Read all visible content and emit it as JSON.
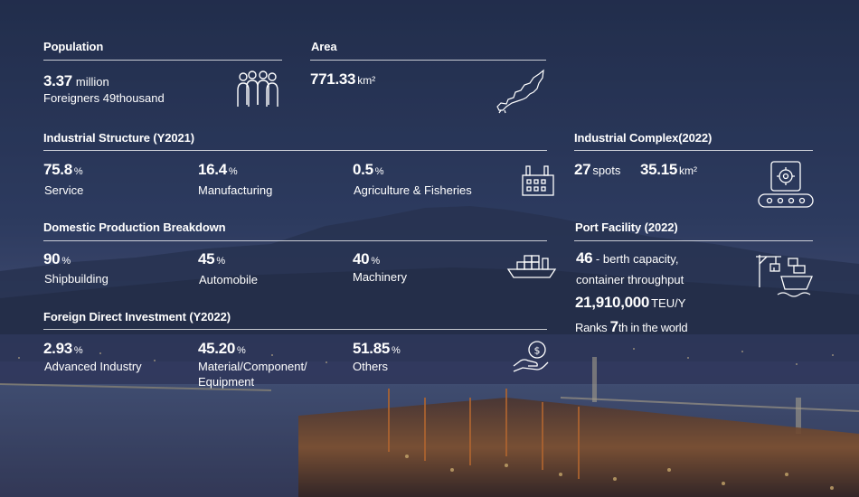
{
  "population": {
    "title": "Population",
    "value": "3.37",
    "unit": "million",
    "foreigners": "Foreigners 49thousand"
  },
  "area": {
    "title": "Area",
    "value": "771.33",
    "unit": "km²"
  },
  "industrial_structure": {
    "title": "Industrial Structure (Y2021)",
    "items": [
      {
        "value": "75.8",
        "unit": "%",
        "label": "Service"
      },
      {
        "value": "16.4",
        "unit": "%",
        "label": "Manufacturing"
      },
      {
        "value": "0.5",
        "unit": "%",
        "label": "Agriculture & Fisheries"
      }
    ]
  },
  "industrial_complex": {
    "title": "Industrial Complex(2022)",
    "spots_value": "27",
    "spots_unit": "spots",
    "area_value": "35.15",
    "area_unit": "km²"
  },
  "domestic_production": {
    "title": "Domestic Production Breakdown",
    "items": [
      {
        "value": "90",
        "unit": "%",
        "label": "Shipbuilding"
      },
      {
        "value": "45",
        "unit": "%",
        "label": "Automobile"
      },
      {
        "value": "40",
        "unit": "%",
        "label": "Machinery"
      }
    ]
  },
  "port_facility": {
    "title": "Port Facility (2022)",
    "berth_value": "46",
    "berth_text": " - berth capacity,",
    "throughput_label": "container throughput",
    "teu_value": "21,910,000",
    "teu_unit": "TEU/Y",
    "rank_pre": "Ranks ",
    "rank_value": "7",
    "rank_post": "th in the world"
  },
  "fdi": {
    "title": "Foreign Direct Investment (Y2022)",
    "items": [
      {
        "value": "2.93",
        "unit": "%",
        "label": "Advanced Industry",
        "label2": ""
      },
      {
        "value": "45.20",
        "unit": "%",
        "label": "Material/Component/",
        "label2": "Equipment"
      },
      {
        "value": "51.85",
        "unit": "%",
        "label": "Others",
        "label2": ""
      }
    ]
  },
  "icons": {
    "population": "people-icon",
    "area": "map-outline-icon",
    "structure": "factory-building-icon",
    "complex": "conveyor-gear-icon",
    "production": "container-ship-icon",
    "port": "crane-ship-icon",
    "fdi": "hand-money-icon"
  }
}
